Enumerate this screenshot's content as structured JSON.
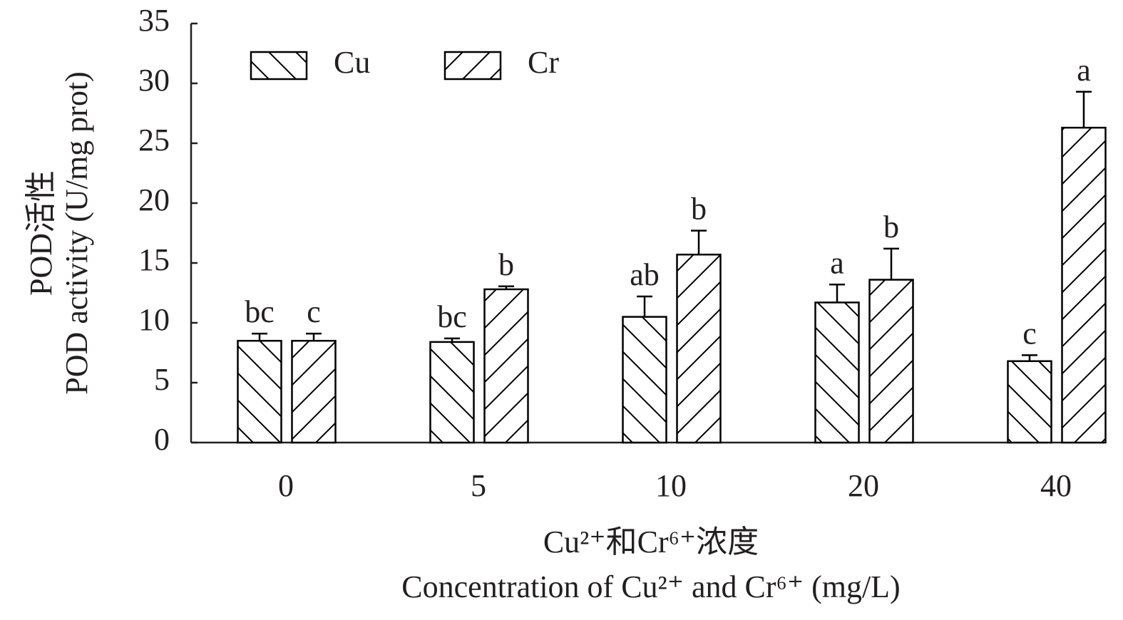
{
  "chart_data": {
    "type": "bar",
    "ylabel": [
      "POD活性",
      "POD activity (U/mg prot)"
    ],
    "xlabel": [
      "Cu²⁺和Cr⁶⁺浓度",
      "Concentration of Cu²⁺ and Cr⁶⁺ (mg/L)"
    ],
    "categories": [
      "0",
      "5",
      "10",
      "20",
      "40"
    ],
    "series": [
      {
        "name": "Cu",
        "color": "#000000",
        "hatch": "\\",
        "values": [
          8.5,
          8.4,
          10.5,
          11.7,
          6.8
        ],
        "errors": [
          0.6,
          0.3,
          1.7,
          1.5,
          0.5
        ],
        "labels": [
          "bc",
          "bc",
          "ab",
          "a",
          "c"
        ]
      },
      {
        "name": "Cr",
        "color": "#000000",
        "hatch": "/",
        "values": [
          8.5,
          12.8,
          15.7,
          13.6,
          26.3
        ],
        "errors": [
          0.6,
          0.25,
          2.0,
          2.6,
          3.0
        ],
        "labels": [
          "c",
          "b",
          "b",
          "b",
          "a"
        ]
      }
    ],
    "ylim": [
      0,
      35
    ],
    "yticks": [
      0,
      5,
      10,
      15,
      20,
      25,
      30,
      35
    ],
    "grid": false,
    "legend": "top-left"
  }
}
